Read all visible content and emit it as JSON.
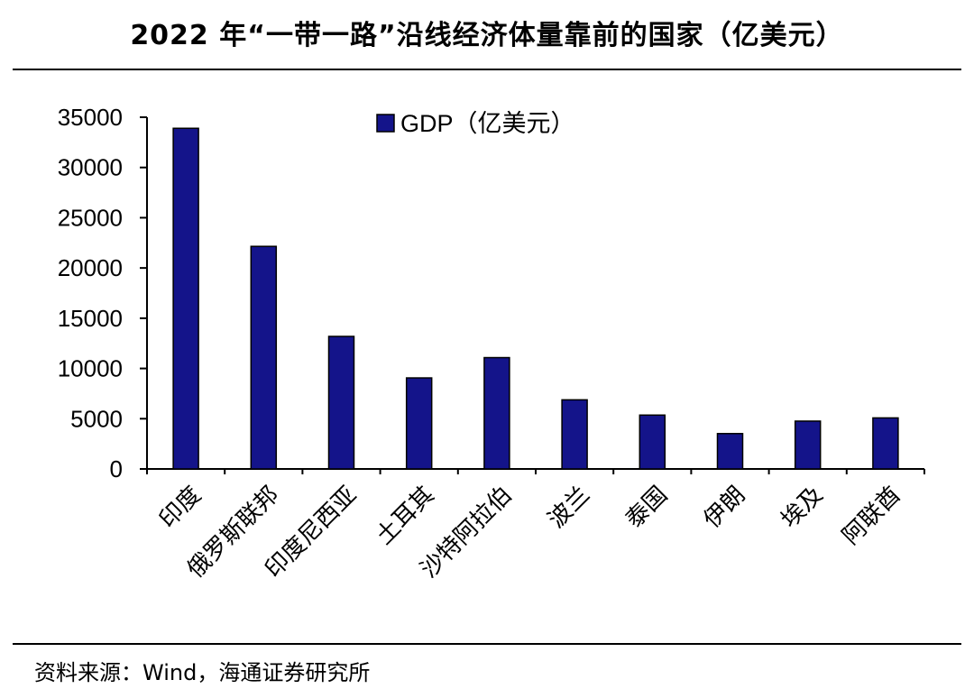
{
  "title": "2022 年“一带一路”沿线经济体量靠前的国家（亿美元）",
  "source": "资料来源：Wind，海通证券研究所",
  "colors": {
    "bar_fill": "#14148a",
    "bar_stroke": "#000000",
    "axis": "#000000"
  },
  "chart_data": {
    "type": "bar",
    "title": "2022 年“一带一路”沿线经济体量靠前的国家（亿美元）",
    "categories": [
      "印度",
      "俄罗斯联邦",
      "印度尼西亚",
      "土耳其",
      "沙特阿拉伯",
      "波兰",
      "泰国",
      "伊朗",
      "埃及",
      "阿联酋"
    ],
    "series": [
      {
        "name": "GDP（亿美元）",
        "values": [
          33900,
          22150,
          13190,
          9060,
          11080,
          6880,
          5360,
          3520,
          4760,
          5080
        ]
      }
    ],
    "y_ticks": [
      "0",
      "5000",
      "10000",
      "15000",
      "20000",
      "25000",
      "30000",
      "35000"
    ],
    "ylim": [
      0,
      35000
    ],
    "grid": false,
    "legend_position": "top-center"
  }
}
